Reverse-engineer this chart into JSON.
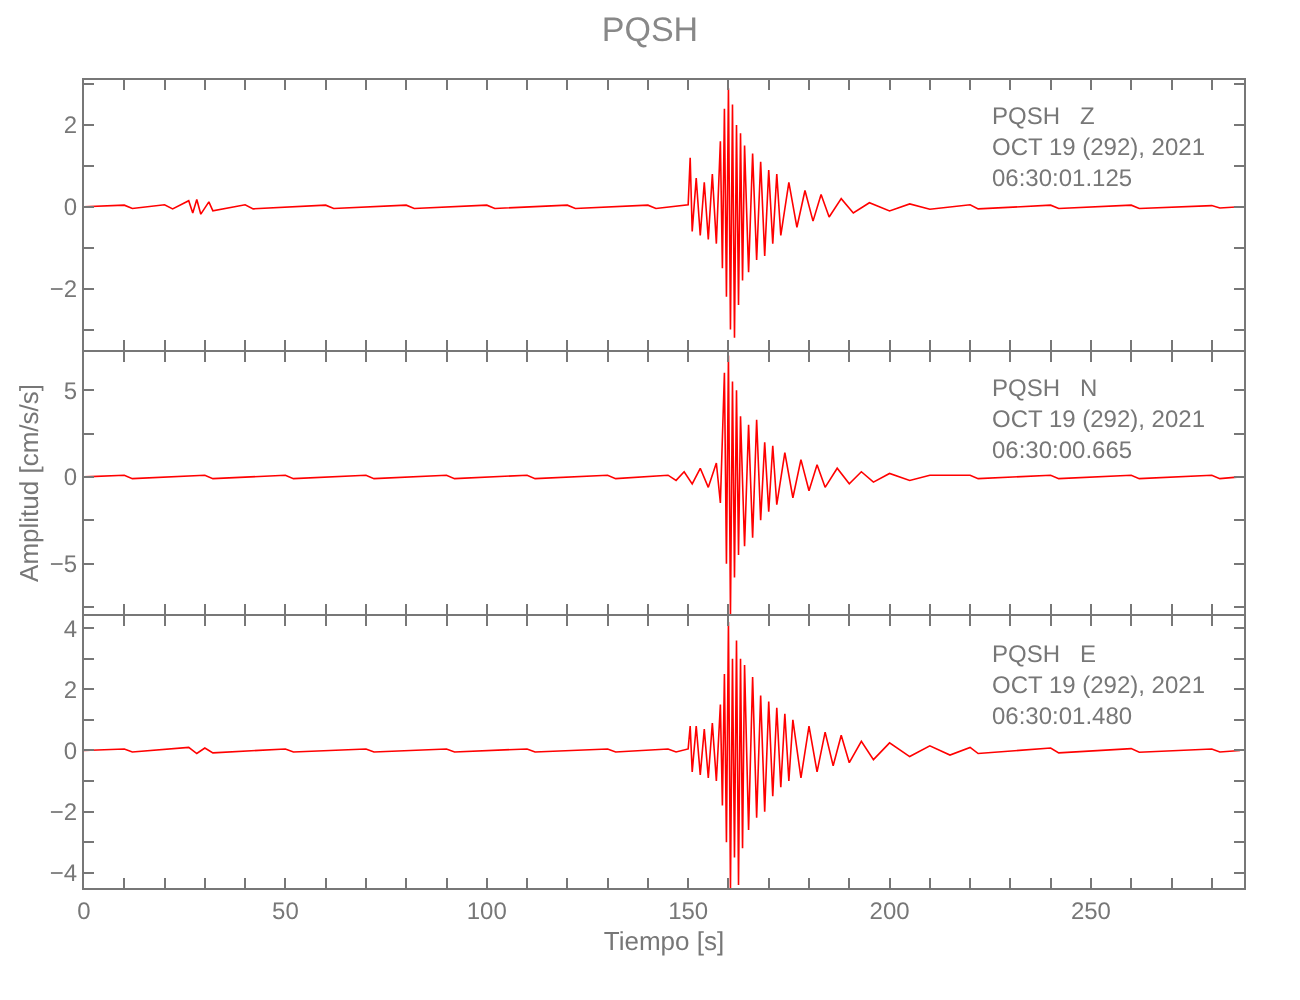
{
  "chart_data": [
    {
      "type": "line",
      "title": "PQSH",
      "annotations": [
        "PQSH   Z",
        "OCT 19 (292), 2021",
        "06:30:01.125"
      ],
      "tick_labels": "y",
      "xlim": [
        0,
        288
      ],
      "ylim": [
        -3.5,
        3.1
      ],
      "xticks": [
        0,
        {
          "value": 10,
          "label": null
        },
        {
          "value": 20,
          "label": null
        },
        {
          "value": 30,
          "label": null
        },
        {
          "value": 40,
          "label": null
        },
        {
          "value": 50,
          "label": null
        },
        {
          "value": 60,
          "label": null
        },
        {
          "value": 70,
          "label": null
        },
        {
          "value": 80,
          "label": null
        },
        {
          "value": 90,
          "label": null
        },
        {
          "value": 100,
          "label": null
        },
        {
          "value": 110,
          "label": null
        },
        {
          "value": 120,
          "label": null
        },
        {
          "value": 130,
          "label": null
        },
        {
          "value": 140,
          "label": null
        },
        {
          "value": 150,
          "label": null
        },
        {
          "value": 160,
          "label": null
        },
        {
          "value": 170,
          "label": null
        },
        {
          "value": 180,
          "label": null
        },
        {
          "value": 190,
          "label": null
        },
        {
          "value": 200,
          "label": null
        },
        {
          "value": 210,
          "label": null
        },
        {
          "value": 220,
          "label": null
        },
        {
          "value": 230,
          "label": null
        },
        {
          "value": 240,
          "label": null
        },
        {
          "value": 250,
          "label": null
        },
        {
          "value": 260,
          "label": null
        },
        {
          "value": 270,
          "label": null
        },
        {
          "value": 280,
          "label": null
        }
      ],
      "yticks": [
        {
          "value": -3,
          "label": null
        },
        {
          "value": -2,
          "label": "−2"
        },
        {
          "value": -1,
          "label": null
        },
        0,
        {
          "value": 1,
          "label": null
        },
        2,
        {
          "value": 3,
          "label": null
        }
      ],
      "series": [
        {
          "color": "#ff0000",
          "x": [
            0,
            10,
            12,
            20,
            22,
            26,
            27,
            28,
            29,
            31,
            32,
            40,
            42,
            60,
            62,
            80,
            82,
            100,
            102,
            120,
            122,
            140,
            142,
            150,
            150.5,
            151,
            152,
            153,
            154,
            155,
            156,
            157,
            158,
            158.5,
            159,
            159.5,
            160,
            160.5,
            161,
            161.5,
            162,
            162.5,
            163,
            163.5,
            164,
            165,
            166,
            167,
            168,
            169,
            170,
            171,
            172,
            173,
            175,
            177,
            179,
            181,
            183,
            185,
            188,
            191,
            195,
            200,
            205,
            210,
            220,
            222,
            240,
            242,
            260,
            262,
            280,
            282,
            287
          ],
          "values": [
            0,
            0.04,
            -0.04,
            0.05,
            -0.05,
            0.15,
            -0.15,
            0.18,
            -0.18,
            0.12,
            -0.1,
            0.05,
            -0.05,
            0.04,
            -0.04,
            0.04,
            -0.04,
            0.04,
            -0.04,
            0.04,
            -0.04,
            0.04,
            -0.04,
            0.05,
            1.2,
            -0.6,
            0.7,
            -0.7,
            0.6,
            -0.8,
            0.8,
            -0.9,
            1.6,
            -1.5,
            2.4,
            -2.2,
            2.9,
            -3.0,
            2.5,
            -3.2,
            2.0,
            -2.4,
            1.8,
            -1.8,
            1.5,
            -1.6,
            1.3,
            -1.3,
            1.1,
            -1.2,
            0.9,
            -0.9,
            0.8,
            -0.7,
            0.6,
            -0.5,
            0.4,
            -0.35,
            0.3,
            -0.25,
            0.2,
            -0.15,
            0.1,
            -0.1,
            0.07,
            -0.06,
            0.05,
            -0.05,
            0.04,
            -0.04,
            0.04,
            -0.04,
            0.03,
            -0.03,
            0
          ]
        }
      ]
    },
    {
      "type": "line",
      "ylabel": "Amplitud [cm/s/s]",
      "annotations": [
        "PQSH   N",
        "OCT 19 (292), 2021",
        "06:30:00.665"
      ],
      "tick_labels": "y",
      "xlim": [
        0,
        288
      ],
      "ylim": [
        -7.9,
        7.2
      ],
      "xticks": [
        0,
        {
          "value": 10,
          "label": null
        },
        {
          "value": 20,
          "label": null
        },
        {
          "value": 30,
          "label": null
        },
        {
          "value": 40,
          "label": null
        },
        {
          "value": 50,
          "label": null
        },
        {
          "value": 60,
          "label": null
        },
        {
          "value": 70,
          "label": null
        },
        {
          "value": 80,
          "label": null
        },
        {
          "value": 90,
          "label": null
        },
        {
          "value": 100,
          "label": null
        },
        {
          "value": 110,
          "label": null
        },
        {
          "value": 120,
          "label": null
        },
        {
          "value": 130,
          "label": null
        },
        {
          "value": 140,
          "label": null
        },
        {
          "value": 150,
          "label": null
        },
        {
          "value": 160,
          "label": null
        },
        {
          "value": 170,
          "label": null
        },
        {
          "value": 180,
          "label": null
        },
        {
          "value": 190,
          "label": null
        },
        {
          "value": 200,
          "label": null
        },
        {
          "value": 210,
          "label": null
        },
        {
          "value": 220,
          "label": null
        },
        {
          "value": 230,
          "label": null
        },
        {
          "value": 240,
          "label": null
        },
        {
          "value": 250,
          "label": null
        },
        {
          "value": 260,
          "label": null
        },
        {
          "value": 270,
          "label": null
        },
        {
          "value": 280,
          "label": null
        }
      ],
      "yticks": [
        {
          "value": -7.5,
          "label": null
        },
        {
          "value": -5,
          "label": "−5"
        },
        {
          "value": -2.5,
          "label": null
        },
        0,
        {
          "value": 2.5,
          "label": null
        },
        5
      ],
      "series": [
        {
          "color": "#ff0000",
          "x": [
            0,
            10,
            12,
            30,
            32,
            50,
            52,
            70,
            72,
            90,
            92,
            110,
            112,
            130,
            132,
            145,
            147,
            149,
            151,
            153,
            155,
            157,
            158,
            159,
            159.5,
            160,
            160.5,
            161,
            161.5,
            162,
            162.5,
            163,
            164,
            165,
            166,
            167,
            168,
            169,
            170,
            171,
            172,
            174,
            176,
            178,
            180,
            182,
            184,
            187,
            190,
            193,
            196,
            200,
            205,
            210,
            220,
            222,
            240,
            242,
            260,
            262,
            280,
            282,
            287
          ],
          "values": [
            0,
            0.1,
            -0.1,
            0.1,
            -0.1,
            0.1,
            -0.1,
            0.1,
            -0.1,
            0.1,
            -0.1,
            0.1,
            -0.1,
            0.1,
            -0.1,
            0.1,
            -0.2,
            0.3,
            -0.4,
            0.5,
            -0.6,
            0.8,
            -1.5,
            6.0,
            -5.0,
            7.0,
            -7.9,
            5.5,
            -5.8,
            5.0,
            -4.5,
            3.5,
            -4.0,
            3.0,
            -3.5,
            3.3,
            -2.5,
            2.0,
            -2.0,
            1.8,
            -1.6,
            1.4,
            -1.2,
            1.0,
            -0.8,
            0.7,
            -0.6,
            0.5,
            -0.4,
            0.3,
            -0.3,
            0.2,
            -0.2,
            0.1,
            0.1,
            -0.1,
            0.1,
            -0.1,
            0.1,
            -0.1,
            0.1,
            -0.1,
            0
          ]
        }
      ]
    },
    {
      "type": "line",
      "xlabel": "Tiempo [s]",
      "annotations": [
        "PQSH   E",
        "OCT 19 (292), 2021",
        "06:30:01.480"
      ],
      "xlim": [
        0,
        288
      ],
      "ylim": [
        -4.5,
        4.4
      ],
      "xticks": [
        0,
        {
          "value": 10,
          "label": null
        },
        {
          "value": 20,
          "label": null
        },
        {
          "value": 30,
          "label": null
        },
        {
          "value": 40,
          "label": null
        },
        50,
        {
          "value": 60,
          "label": null
        },
        {
          "value": 70,
          "label": null
        },
        {
          "value": 80,
          "label": null
        },
        {
          "value": 90,
          "label": null
        },
        100,
        {
          "value": 110,
          "label": null
        },
        {
          "value": 120,
          "label": null
        },
        {
          "value": 130,
          "label": null
        },
        {
          "value": 140,
          "label": null
        },
        150,
        {
          "value": 160,
          "label": null
        },
        {
          "value": 170,
          "label": null
        },
        {
          "value": 180,
          "label": null
        },
        {
          "value": 190,
          "label": null
        },
        200,
        {
          "value": 210,
          "label": null
        },
        {
          "value": 220,
          "label": null
        },
        {
          "value": 230,
          "label": null
        },
        {
          "value": 240,
          "label": null
        },
        250,
        {
          "value": 260,
          "label": null
        },
        {
          "value": 270,
          "label": null
        },
        {
          "value": 280,
          "label": null
        }
      ],
      "yticks": [
        {
          "value": -4,
          "label": "−4"
        },
        {
          "value": -3,
          "label": null
        },
        {
          "value": -2,
          "label": "−2"
        },
        {
          "value": -1,
          "label": null
        },
        0,
        {
          "value": 1,
          "label": null
        },
        2,
        {
          "value": 3,
          "label": null
        },
        4
      ],
      "series": [
        {
          "color": "#ff0000",
          "x": [
            0,
            10,
            12,
            26,
            28,
            30,
            32,
            50,
            52,
            70,
            72,
            90,
            92,
            110,
            112,
            130,
            132,
            145,
            147,
            150,
            150.5,
            151,
            152,
            153,
            154,
            155,
            156,
            157,
            158,
            158.5,
            159,
            159.5,
            160,
            160.5,
            161,
            161.5,
            162,
            162.5,
            163,
            163.5,
            164,
            165,
            166,
            167,
            168,
            169,
            170,
            171,
            172,
            173,
            174,
            175,
            176,
            178,
            180,
            182,
            184,
            186,
            188,
            190,
            193,
            196,
            200,
            205,
            210,
            215,
            220,
            222,
            240,
            242,
            260,
            262,
            280,
            282,
            287
          ],
          "values": [
            0,
            0.05,
            -0.05,
            0.1,
            -0.1,
            0.08,
            -0.08,
            0.05,
            -0.05,
            0.05,
            -0.05,
            0.05,
            -0.05,
            0.05,
            -0.05,
            0.05,
            -0.05,
            0.05,
            -0.05,
            0.05,
            0.8,
            -0.7,
            0.8,
            -0.8,
            0.7,
            -0.9,
            0.9,
            -1.0,
            1.5,
            -1.8,
            2.5,
            -3.0,
            4.2,
            -4.5,
            3.0,
            -3.5,
            3.6,
            -4.4,
            3.0,
            -3.2,
            2.8,
            -2.6,
            2.4,
            -2.2,
            1.8,
            -2.0,
            1.6,
            -1.5,
            1.4,
            -1.2,
            1.2,
            -1.0,
            1.0,
            -0.9,
            0.8,
            -0.7,
            0.6,
            -0.5,
            0.5,
            -0.4,
            0.3,
            -0.3,
            0.25,
            -0.2,
            0.15,
            -0.15,
            0.1,
            -0.1,
            0.08,
            -0.08,
            0.06,
            -0.06,
            0.05,
            -0.05,
            0
          ]
        }
      ]
    }
  ]
}
